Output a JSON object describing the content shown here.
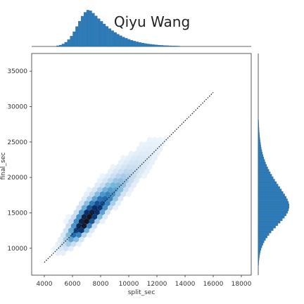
{
  "chart_data": {
    "type": "hexbin-joint",
    "title": "Qiyu Wang",
    "xlabel": "split_sec",
    "ylabel": "final_sec",
    "xlim": [
      3100,
      18700
    ],
    "ylim": [
      6200,
      37500
    ],
    "xticks": [
      "4000",
      "6000",
      "8000",
      "10000",
      "12000",
      "14000",
      "16000",
      "18000"
    ],
    "yticks": [
      "10000",
      "15000",
      "20000",
      "25000",
      "30000",
      "35000"
    ],
    "xtick_values": [
      4000,
      6000,
      8000,
      10000,
      12000,
      14000,
      16000,
      18000
    ],
    "ytick_values": [
      10000,
      15000,
      20000,
      25000,
      30000,
      35000
    ],
    "reference_line": {
      "x": [
        4000,
        16000
      ],
      "y": [
        8000,
        32000
      ],
      "style": "dotted"
    },
    "density_core": {
      "center_split_sec": 7200,
      "center_final_sec": 15500
    },
    "marginal_x_peak": 7200,
    "marginal_y_peak": 16000,
    "color": "#2b7bba"
  }
}
